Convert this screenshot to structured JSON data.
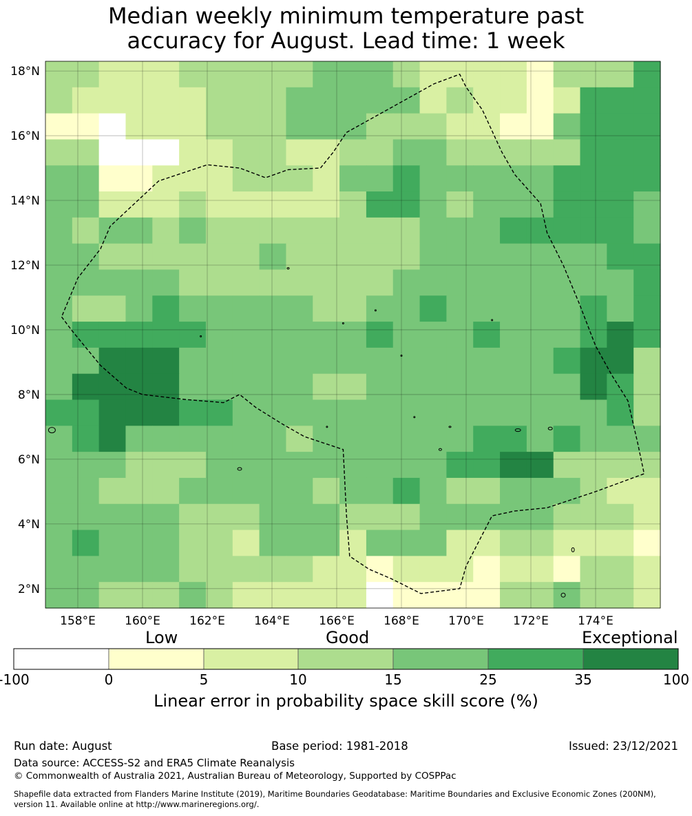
{
  "title_line1": "Median weekly minimum temperature past",
  "title_line2": "accuracy for August. Lead time: 1 week",
  "map": {
    "lon_range": [
      157,
      176
    ],
    "lat_range": [
      1.4,
      18.3
    ],
    "lon_ticks": [
      "158°E",
      "160°E",
      "162°E",
      "164°E",
      "166°E",
      "168°E",
      "170°E",
      "172°E",
      "174°E"
    ],
    "lat_ticks": [
      "2°N",
      "4°N",
      "6°N",
      "8°N",
      "10°N",
      "12°N",
      "14°N",
      "16°N",
      "18°N"
    ],
    "grid_cols": 23,
    "grid_rows": 21,
    "cells": [
      "33222333334443222213335",
      "32222233344444232212555",
      "11022233344433322114555",
      "33000223322334433333555",
      "44112223332445444445555",
      "44222322222355434445554",
      "43443433333333444555554",
      "44333333433333444444455",
      "44444333333334444444445",
      "43345444443344544444545",
      "45555544444454445444565",
      "44666444444444444445663",
      "46666444443344444444653",
      "55666554444444444444453",
      "45644444434444445545444",
      "44433344444444455663333",
      "44333444443445433444322",
      "44444333444333444443332",
      "45444332444244422332221",
      "44444333332212221221332",
      "44333432222201111334332"
    ],
    "eez_boundary": [
      [
        157.5,
        10.4
      ],
      [
        157.8,
        10.0
      ],
      [
        158.7,
        8.9
      ],
      [
        159.5,
        8.2
      ],
      [
        160.0,
        8.0
      ],
      [
        161.3,
        7.85
      ],
      [
        162.5,
        7.75
      ],
      [
        163.0,
        8.0
      ],
      [
        163.5,
        7.6
      ],
      [
        164.3,
        7.1
      ],
      [
        165.0,
        6.7
      ],
      [
        166.2,
        6.3
      ],
      [
        166.3,
        4.3
      ],
      [
        166.4,
        3.0
      ],
      [
        167.0,
        2.6
      ],
      [
        167.7,
        2.3
      ],
      [
        168.6,
        1.85
      ],
      [
        169.8,
        2.0
      ],
      [
        170.0,
        2.7
      ],
      [
        170.8,
        4.25
      ],
      [
        171.5,
        4.4
      ],
      [
        172.5,
        4.5
      ],
      [
        174.0,
        5.0
      ],
      [
        175.5,
        5.55
      ],
      [
        175.3,
        6.5
      ],
      [
        175.0,
        7.8
      ],
      [
        174.5,
        8.6
      ],
      [
        174.0,
        9.5
      ],
      [
        173.5,
        10.8
      ],
      [
        173.0,
        12.0
      ],
      [
        172.5,
        13.0
      ],
      [
        172.3,
        13.9
      ],
      [
        171.5,
        14.8
      ],
      [
        171.1,
        15.5
      ],
      [
        170.5,
        16.8
      ],
      [
        170.0,
        17.5
      ],
      [
        169.8,
        17.9
      ],
      [
        169.0,
        17.6
      ],
      [
        166.3,
        16.1
      ],
      [
        165.9,
        15.5
      ],
      [
        165.5,
        15.0
      ],
      [
        164.5,
        14.95
      ],
      [
        163.8,
        14.7
      ],
      [
        163.0,
        15.0
      ],
      [
        162.0,
        15.1
      ],
      [
        160.5,
        14.6
      ],
      [
        159.0,
        13.2
      ],
      [
        158.7,
        12.5
      ],
      [
        158.0,
        11.6
      ],
      [
        157.5,
        10.4
      ]
    ]
  },
  "colorbar": {
    "category_labels": [
      "Low",
      "Good",
      "Exceptional"
    ],
    "tick_labels": [
      "-100",
      "0",
      "5",
      "10",
      "15",
      "25",
      "35",
      "100"
    ],
    "colors": [
      "#ffffff",
      "#ffffcc",
      "#d9f0a3",
      "#addd8e",
      "#78c679",
      "#41ab5d",
      "#238443"
    ],
    "label": "Linear error in probability space skill score (%)"
  },
  "footer": {
    "run_date": "Run date: August",
    "base_period": "Base period: 1981-2018",
    "issued": "Issued: 23/12/2021",
    "data_source": "Data source: ACCESS-S2 and ERA5 Climate Reanalysis",
    "copyright": "© Commonwealth of Australia 2021, Australian Bureau of Meteorology, Supported by COSPPac",
    "shapefile_line1": "Shapefile data extracted from Flanders Marine Institute (2019), Maritime Boundaries Geodatabase: Maritime Boundaries and Exclusive Economic Zones (200NM),",
    "shapefile_line2": "version 11. Available online at http://www.marineregions.org/."
  }
}
